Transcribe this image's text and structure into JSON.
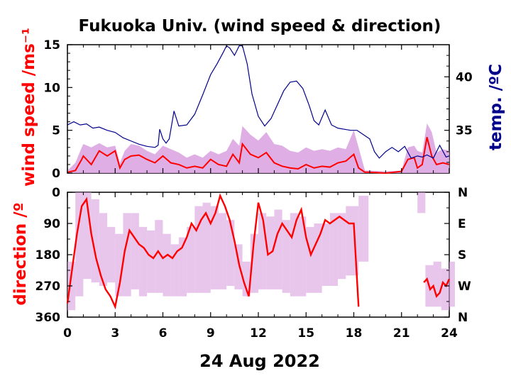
{
  "chart_data": {
    "title": "Fukuoka Univ. (wind speed & direction)",
    "xlabel": "24 Aug 2022",
    "x_ticks": [
      "0",
      "3",
      "6",
      "9",
      "12",
      "15",
      "18",
      "21",
      "24"
    ],
    "xlim": [
      0,
      24
    ],
    "colors": {
      "wind_mean": "#ff0000",
      "wind_gust": "#d9a0e0",
      "temperature": "#00008b",
      "direction_mean": "#ff0000",
      "direction_spread": "#d9a0e0",
      "axis": "#000000"
    },
    "panels": [
      {
        "type": "line",
        "ylabel": "wind speed /ms⁻¹",
        "y2label": "temp. /ºC",
        "ylim": [
          0,
          15
        ],
        "y_ticks": [
          "0",
          "5",
          "10",
          "15"
        ],
        "y2lim": [
          31,
          43
        ],
        "y2_ticks": [
          "35",
          "40"
        ],
        "grid": false,
        "series": [
          {
            "axis": "left",
            "style": "band",
            "x": [
              0,
              0.5,
              0.9,
              1.0,
              1.5,
              2.0,
              2.5,
              3.0,
              3.3,
              3.6,
              4.0,
              4.5,
              5.0,
              5.5,
              6.0,
              6.5,
              7.0,
              7.5,
              8.0,
              8.5,
              9.0,
              9.5,
              10.0,
              10.4,
              10.8,
              11.0,
              11.5,
              12.0,
              12.5,
              13.0,
              13.5,
              14.0,
              14.5,
              15.0,
              15.5,
              16.0,
              16.5,
              17.0,
              17.5,
              18.0,
              18.3,
              18.7,
              19.0,
              20.0,
              21.0,
              21.4,
              21.8,
              22.0,
              22.3,
              22.6,
              22.9,
              23.2,
              23.6,
              24.0
            ],
            "values": [
              0.3,
              1.2,
              3.0,
              3.4,
              3.0,
              3.5,
              3.0,
              3.2,
              1.2,
              2.6,
              3.4,
              3.2,
              2.6,
              2.2,
              3.2,
              2.8,
              2.4,
              1.8,
              2.2,
              1.8,
              2.6,
              2.2,
              2.6,
              4.0,
              3.2,
              5.5,
              4.5,
              3.8,
              4.8,
              3.4,
              3.2,
              2.6,
              2.4,
              3.0,
              2.6,
              2.8,
              2.6,
              3.0,
              2.8,
              5.0,
              3.0,
              0.3,
              0.3,
              0.2,
              0.3,
              3.0,
              3.2,
              2.6,
              2.4,
              5.8,
              4.8,
              2.4,
              2.8,
              2.6
            ]
          },
          {
            "axis": "left",
            "style": "line",
            "x": [
              0,
              0.5,
              0.9,
              1.0,
              1.5,
              2.0,
              2.5,
              3.0,
              3.3,
              3.6,
              4.0,
              4.5,
              5.0,
              5.5,
              6.0,
              6.5,
              7.0,
              7.5,
              8.0,
              8.5,
              9.0,
              9.5,
              10.0,
              10.4,
              10.8,
              11.0,
              11.5,
              12.0,
              12.5,
              13.0,
              13.5,
              14.0,
              14.5,
              15.0,
              15.5,
              16.0,
              16.5,
              17.0,
              17.5,
              18.0,
              18.3,
              18.7,
              19.0,
              20.0,
              21.0,
              21.4,
              21.8,
              22.0,
              22.3,
              22.6,
              22.9,
              23.2,
              23.6,
              24.0
            ],
            "values": [
              0.1,
              0.3,
              1.6,
              2.0,
              1.0,
              2.6,
              2.0,
              2.6,
              0.6,
              1.6,
              2.0,
              2.1,
              1.6,
              1.2,
              2.0,
              1.2,
              1.0,
              0.6,
              0.8,
              0.6,
              1.6,
              1.0,
              0.8,
              2.2,
              1.2,
              3.4,
              2.2,
              1.8,
              2.4,
              1.2,
              0.8,
              0.6,
              0.5,
              1.0,
              0.6,
              0.8,
              0.7,
              1.2,
              1.4,
              2.2,
              0.6,
              0.1,
              0.1,
              0.0,
              0.2,
              1.6,
              1.8,
              0.6,
              1.0,
              4.2,
              2.0,
              1.0,
              1.2,
              1.0
            ]
          },
          {
            "axis": "right",
            "style": "line",
            "x": [
              0,
              0.4,
              0.8,
              1.2,
              1.6,
              2.0,
              2.5,
              3.0,
              3.5,
              4.0,
              4.5,
              5.0,
              5.5,
              5.7,
              5.8,
              6.0,
              6.2,
              6.4,
              6.7,
              7.0,
              7.5,
              8.0,
              8.5,
              9.0,
              9.4,
              9.8,
              10.0,
              10.2,
              10.5,
              10.8,
              11.0,
              11.3,
              11.6,
              12.0,
              12.4,
              12.8,
              13.2,
              13.6,
              14.0,
              14.4,
              14.8,
              15.2,
              15.5,
              15.8,
              16.2,
              16.6,
              17.0,
              17.4,
              17.8,
              18.2,
              18.6,
              19.0,
              19.3,
              19.6,
              20.0,
              20.4,
              20.8,
              21.2,
              21.6,
              22.0,
              22.3,
              22.6,
              23.0,
              23.4,
              23.8,
              24.0
            ],
            "values": [
              35.5,
              35.8,
              35.5,
              35.6,
              35.2,
              35.3,
              35.0,
              34.8,
              34.3,
              34.0,
              33.7,
              33.5,
              33.4,
              33.6,
              35.1,
              34.2,
              33.8,
              34.2,
              36.8,
              35.4,
              35.5,
              36.5,
              38.3,
              40.2,
              41.2,
              42.3,
              42.9,
              42.7,
              42.0,
              42.9,
              42.9,
              41.2,
              38.4,
              36.3,
              35.4,
              36.1,
              37.4,
              38.7,
              39.5,
              39.6,
              38.9,
              37.3,
              35.9,
              35.5,
              36.9,
              35.5,
              35.2,
              35.1,
              35.0,
              35.0,
              34.6,
              34.2,
              33.0,
              32.4,
              33.0,
              33.4,
              33.0,
              33.5,
              32.4,
              32.6,
              32.5,
              32.7,
              32.4,
              33.6,
              32.5,
              32.6
            ]
          }
        ]
      },
      {
        "type": "scatter",
        "ylabel": "direction /º",
        "ylim": [
          0,
          360
        ],
        "y_inverted": true,
        "y_ticks": [
          "0",
          "90",
          "180",
          "270",
          "360"
        ],
        "y2_ticks": [
          "N",
          "E",
          "S",
          "W",
          "N"
        ],
        "grid": false,
        "series": [
          {
            "style": "band",
            "x": [
              0,
              0.5,
              1.0,
              1.5,
              2.0,
              2.5,
              3.0,
              3.5,
              4.0,
              4.5,
              5.0,
              5.5,
              6.0,
              6.5,
              7.0,
              7.5,
              8.0,
              8.5,
              9.0,
              9.5,
              10.0,
              10.5,
              11.0,
              11.5,
              12.0,
              12.5,
              13.0,
              13.5,
              14.0,
              14.5,
              15.0,
              15.5,
              16.0,
              16.5,
              17.0,
              17.5,
              18.0,
              18.3,
              22.0,
              22.5,
              23.0,
              23.5,
              24.0
            ],
            "low": [
              200,
              0,
              0,
              20,
              60,
              100,
              120,
              60,
              60,
              100,
              110,
              80,
              120,
              150,
              130,
              100,
              40,
              30,
              40,
              60,
              80,
              150,
              200,
              120,
              60,
              70,
              50,
              80,
              60,
              70,
              100,
              90,
              90,
              60,
              60,
              40,
              40,
              10,
              0,
              210,
              200,
              220,
              200
            ],
            "high": [
              340,
              300,
              250,
              260,
              270,
              260,
              300,
              300,
              280,
              300,
              290,
              290,
              300,
              300,
              300,
              290,
              290,
              290,
              280,
              280,
              270,
              280,
              300,
              290,
              280,
              280,
              280,
              290,
              300,
              300,
              290,
              290,
              270,
              270,
              250,
              240,
              240,
              200,
              60,
              330,
              330,
              340,
              330
            ]
          },
          {
            "style": "line",
            "x": [
              0,
              0.3,
              0.6,
              0.9,
              1.2,
              1.5,
              1.8,
              2.1,
              2.4,
              2.7,
              3.0,
              3.3,
              3.6,
              3.9,
              4.2,
              4.5,
              4.8,
              5.1,
              5.4,
              5.7,
              6.0,
              6.3,
              6.6,
              6.9,
              7.2,
              7.5,
              7.8,
              8.1,
              8.4,
              8.7,
              9.0,
              9.3,
              9.6,
              9.9,
              10.2,
              10.5,
              10.8,
              11.1,
              11.4,
              11.7,
              12.0,
              12.3,
              12.6,
              12.9,
              13.2,
              13.5,
              13.8,
              14.1,
              14.4,
              14.7,
              15.0,
              15.3,
              15.6,
              15.9,
              16.2,
              16.5,
              16.8,
              17.1,
              17.4,
              17.7,
              18.0,
              18.3,
              22.4,
              22.6,
              22.8,
              23.0,
              23.2,
              23.4,
              23.6,
              23.8,
              24.0
            ],
            "values": [
              320,
              220,
              120,
              40,
              20,
              120,
              190,
              240,
              280,
              300,
              330,
              260,
              170,
              110,
              130,
              150,
              160,
              180,
              190,
              170,
              190,
              180,
              190,
              170,
              160,
              130,
              90,
              110,
              80,
              60,
              90,
              60,
              10,
              40,
              80,
              140,
              210,
              260,
              300,
              150,
              30,
              80,
              180,
              170,
              120,
              90,
              110,
              130,
              80,
              50,
              130,
              180,
              150,
              120,
              80,
              90,
              80,
              70,
              80,
              90,
              90,
              330,
              260,
              250,
              280,
              270,
              300,
              290,
              260,
              270,
              250
            ]
          }
        ]
      }
    ]
  }
}
